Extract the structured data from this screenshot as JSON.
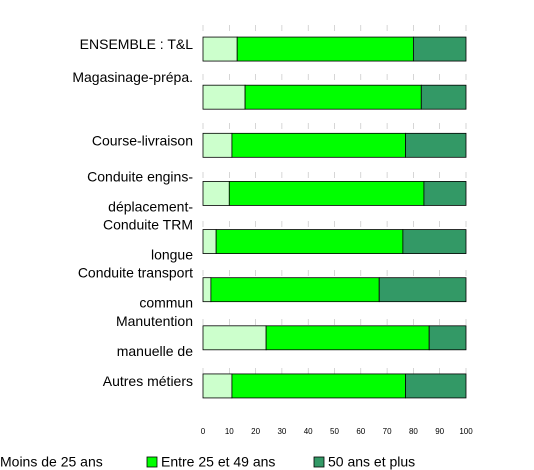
{
  "chart_data": {
    "type": "stacked-barh",
    "categories": [
      [
        "ENSEMBLE : T&L"
      ],
      [
        "Magasinage-prépa."
      ],
      [
        "Course-livraison"
      ],
      [
        "Conduite engins-",
        "déplacement-"
      ],
      [
        "Conduite TRM",
        "longue"
      ],
      [
        "Conduite transport",
        "commun"
      ],
      [
        "Manutention",
        "manuelle de"
      ],
      [
        "Autres métiers"
      ]
    ],
    "series": [
      {
        "name": "Moins de 25 ans",
        "color": "#ccffcc",
        "values": [
          13,
          16,
          11,
          10,
          5,
          3,
          24,
          11
        ]
      },
      {
        "name": "Entre 25 et 49 ans",
        "color": "#00ff00",
        "values": [
          67,
          67,
          66,
          74,
          71,
          64,
          62,
          66
        ]
      },
      {
        "name": "50 ans et plus",
        "color": "#339966",
        "values": [
          20,
          17,
          23,
          16,
          24,
          33,
          14,
          23
        ]
      }
    ],
    "xlim": [
      0,
      100
    ],
    "xticks": [
      0,
      10,
      20,
      30,
      40,
      50,
      60,
      70,
      80,
      90,
      100
    ],
    "grid": true,
    "legend": "bottom"
  }
}
